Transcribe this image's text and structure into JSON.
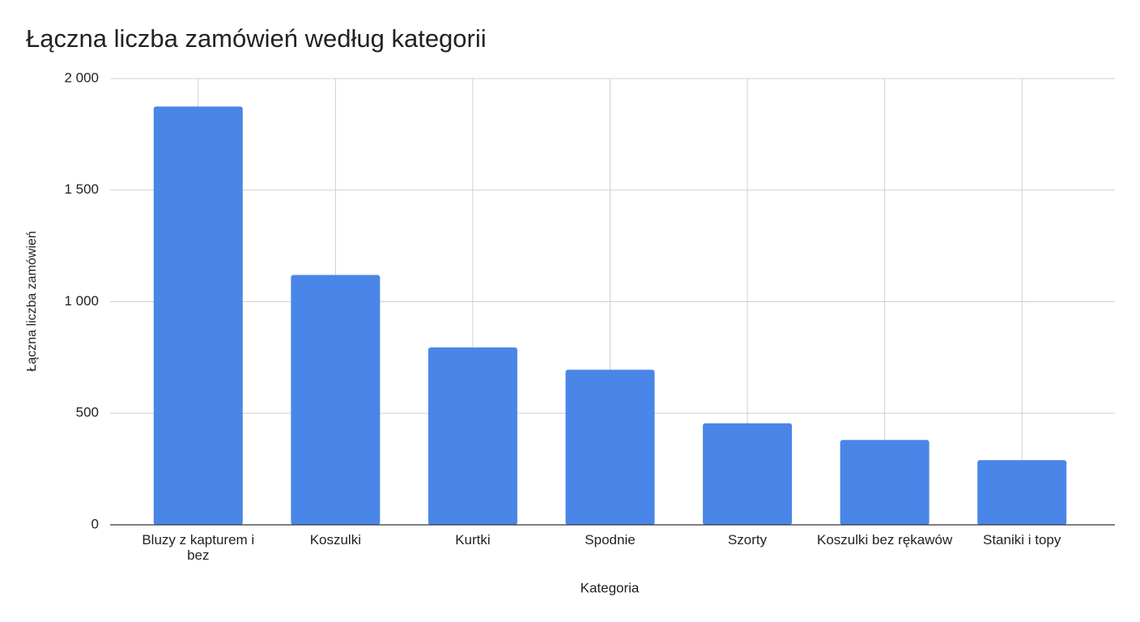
{
  "chart_data": {
    "type": "bar",
    "title": "Łączna liczba zamówień według kategorii",
    "x_label": "Kategoria",
    "y_label": "Łączna liczba zamówień",
    "categories": [
      "Bluzy z kapturem i bez",
      "Koszulki",
      "Kurtki",
      "Spodnie",
      "Szorty",
      "Koszulki bez rękawów",
      "Staniki i topy"
    ],
    "values": [
      1875,
      1120,
      795,
      695,
      455,
      380,
      290
    ],
    "color": "#4a86e8",
    "ylim": [
      0,
      2000
    ],
    "yticks": [
      0,
      500,
      {
        "value": 1000,
        "label": "1 000"
      },
      {
        "value": 1500,
        "label": "1 500"
      },
      {
        "value": 2000,
        "label": "2 000"
      }
    ],
    "grid": true
  }
}
